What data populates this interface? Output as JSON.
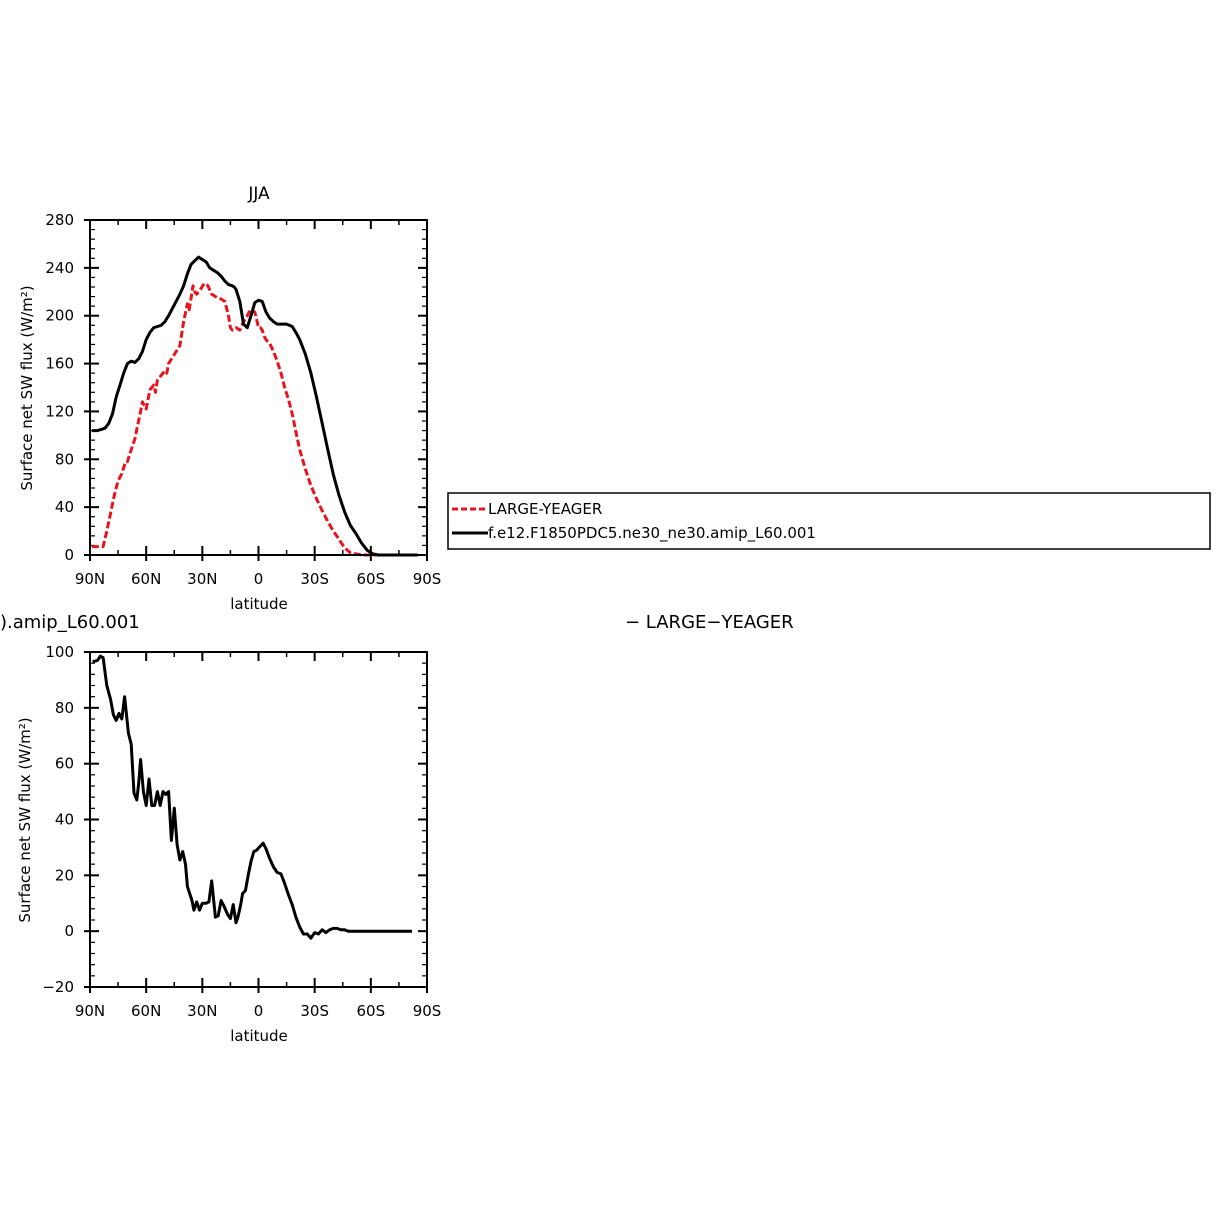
{
  "colors": {
    "red": "#e8141b",
    "black": "#000000"
  },
  "chart_data": [
    {
      "type": "line",
      "title": "JJA",
      "xlabel": "latitude",
      "ylabel": "Surface net SW flux (W/m²)",
      "xlim": [
        90,
        -90
      ],
      "ylim": [
        0,
        280
      ],
      "xticks": [
        90,
        60,
        30,
        0,
        -30,
        -60,
        -90
      ],
      "xtick_labels": [
        "90N",
        "60N",
        "30N",
        "0",
        "30S",
        "60S",
        "90S"
      ],
      "yticks": [
        0,
        40,
        80,
        120,
        160,
        200,
        240,
        280
      ],
      "ytick_labels": [
        "0",
        "40",
        "80",
        "120",
        "160",
        "200",
        "240",
        "280"
      ],
      "legend": {
        "position": "right",
        "entries": [
          "LARGE-YEAGER",
          "f.e12.F1850PDC5.ne30_ne30.amip_L60.001"
        ]
      },
      "series": [
        {
          "name": "LARGE-YEAGER",
          "style": "dashed",
          "color": "#e8141b",
          "x": [
            89,
            86,
            83,
            81,
            79,
            77,
            75,
            73,
            71,
            70,
            68,
            66,
            65,
            63,
            62,
            60,
            58,
            56,
            55,
            54,
            52,
            50,
            49,
            48,
            46,
            44,
            42,
            40,
            38,
            37,
            36,
            35,
            34,
            33,
            32,
            31,
            29,
            27,
            25,
            24,
            22,
            20,
            18,
            16,
            15,
            14,
            12,
            10,
            8,
            6,
            5,
            4,
            2,
            1,
            0,
            -1,
            -2,
            -3,
            -4,
            -5,
            -6,
            -8,
            -10,
            -12,
            -14,
            -16,
            -18,
            -20,
            -22,
            -25,
            -28,
            -31,
            -34,
            -37,
            -40,
            -43,
            -46,
            -49,
            -52,
            -55,
            -58,
            -61,
            -64,
            -66,
            -68,
            -71,
            -75,
            -80,
            -85
          ],
          "y": [
            7,
            7,
            7,
            20,
            35,
            50,
            62,
            68,
            78,
            78,
            88,
            97,
            105,
            120,
            128,
            122,
            138,
            142,
            136,
            146,
            150,
            154,
            152,
            160,
            165,
            170,
            175,
            195,
            210,
            205,
            215,
            225,
            220,
            218,
            220,
            222,
            227,
            225,
            218,
            217,
            215,
            214,
            212,
            200,
            190,
            188,
            190,
            188,
            195,
            200,
            203,
            205,
            203,
            197,
            190,
            190,
            188,
            183,
            180,
            178,
            177,
            170,
            162,
            152,
            140,
            130,
            118,
            103,
            88,
            72,
            58,
            47,
            37,
            28,
            20,
            13,
            6,
            2,
            1,
            0,
            0,
            0,
            0,
            0,
            0,
            0,
            0,
            0,
            0
          ]
        },
        {
          "name": "f.e12.F1850PDC5.ne30_ne30.amip_L60.001",
          "style": "solid",
          "color": "#000000",
          "x": [
            89,
            86,
            84,
            82,
            80,
            78,
            76,
            74,
            72,
            70,
            68,
            66,
            64,
            62,
            60,
            58,
            56,
            54,
            52,
            50,
            48,
            46,
            44,
            42,
            40,
            38,
            36,
            34,
            32,
            30,
            28,
            26,
            24,
            22,
            20,
            18,
            16,
            14,
            13,
            12,
            10,
            8,
            6,
            5,
            4,
            2,
            0,
            -2,
            -4,
            -6,
            -8,
            -10,
            -12,
            -15,
            -18,
            -20,
            -22,
            -25,
            -28,
            -31,
            -34,
            -37,
            -40,
            -43,
            -46,
            -49,
            -52,
            -55,
            -58,
            -61,
            -64,
            -67,
            -70,
            -75,
            -80,
            -85
          ],
          "y": [
            104,
            104,
            105,
            106,
            110,
            118,
            132,
            142,
            152,
            160,
            162,
            161,
            164,
            170,
            180,
            186,
            190,
            191,
            192,
            195,
            200,
            206,
            212,
            218,
            225,
            235,
            243,
            246,
            249,
            247,
            245,
            240,
            238,
            236,
            233,
            229,
            226,
            225,
            224,
            222,
            212,
            193,
            190,
            195,
            200,
            211,
            213,
            212,
            203,
            198,
            195,
            193,
            193,
            193,
            191,
            186,
            180,
            168,
            152,
            132,
            110,
            88,
            67,
            50,
            36,
            25,
            18,
            10,
            4,
            1,
            0,
            0,
            0,
            0,
            0,
            0
          ]
        }
      ]
    },
    {
      "type": "line",
      "title": ").amip_L60.001",
      "title_right": "− LARGE−YEAGER",
      "xlabel": "latitude",
      "ylabel": "Surface net SW flux (W/m²)",
      "xlim": [
        90,
        -90
      ],
      "ylim": [
        -20,
        100
      ],
      "xticks": [
        90,
        60,
        30,
        0,
        -30,
        -60,
        -90
      ],
      "xtick_labels": [
        "90N",
        "60N",
        "30N",
        "0",
        "30S",
        "60S",
        "90S"
      ],
      "yticks": [
        -20,
        0,
        20,
        40,
        60,
        80,
        100
      ],
      "ytick_labels": [
        "−20",
        "0",
        "20",
        "40",
        "60",
        "80",
        "100"
      ],
      "series": [
        {
          "style": "solid",
          "color": "#000000",
          "x": [
            88.6,
            86,
            84.5,
            83,
            81,
            79,
            77.5,
            76,
            74.5,
            73,
            71.5,
            69.5,
            68,
            66.5,
            65,
            64,
            63,
            61.5,
            60,
            58.5,
            57,
            55.5,
            54,
            52.5,
            51,
            49.5,
            48,
            46.5,
            45,
            43.5,
            42,
            40.5,
            39,
            38,
            37,
            35.5,
            34.5,
            33,
            31.5,
            30,
            28,
            26.5,
            25,
            23,
            21.5,
            20,
            18.5,
            16.5,
            15,
            13.5,
            12,
            11,
            9.5,
            8.5,
            7,
            5.5,
            4,
            2.5,
            1,
            -1,
            -2.5,
            -4,
            -6,
            -8,
            -10,
            -12,
            -14,
            -16,
            -18,
            -20,
            -22,
            -24,
            -26,
            -28,
            -30,
            -32,
            -34,
            -36,
            -38,
            -40,
            -42,
            -44,
            -46,
            -48,
            -50,
            -52,
            -54,
            -56,
            -58,
            -60,
            -62,
            -64,
            -66,
            -68,
            -70,
            -72,
            -74,
            -76,
            -78,
            -80,
            -82
          ],
          "y": [
            96.5,
            97,
            98.5,
            98,
            88,
            83,
            77.5,
            75.5,
            78,
            76,
            84,
            71,
            67,
            49.5,
            47,
            53,
            61.5,
            50,
            45,
            54.5,
            45,
            45,
            50,
            45,
            50,
            49,
            50,
            32.5,
            44,
            31,
            25.5,
            28.5,
            24,
            16,
            14,
            11,
            7.5,
            10.5,
            7.5,
            10,
            10,
            10.5,
            18,
            5,
            5.5,
            11,
            9,
            6,
            4.5,
            9.5,
            3,
            5,
            9.5,
            13.5,
            14.5,
            20,
            25,
            28.5,
            29,
            30.5,
            31.5,
            29.5,
            26,
            23,
            21,
            20.5,
            17,
            13,
            9.5,
            5,
            1.5,
            -1,
            -1,
            -2.5,
            -0.5,
            -1,
            0.5,
            -0.5,
            0.5,
            1,
            1,
            0.5,
            0.5,
            0,
            0,
            0,
            0,
            0,
            0,
            0,
            0,
            0,
            0,
            0,
            0,
            0,
            0,
            0,
            0,
            0,
            0
          ]
        }
      ]
    }
  ]
}
